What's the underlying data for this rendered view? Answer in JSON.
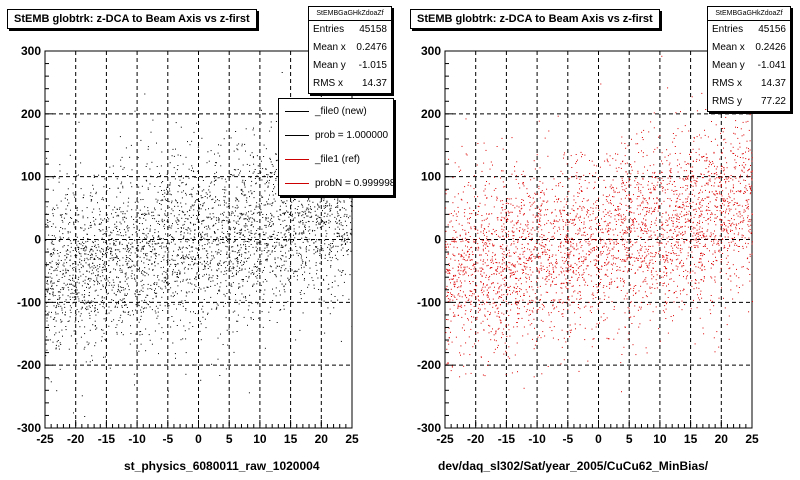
{
  "footer_text": "",
  "chart_data": [
    {
      "type": "scatter",
      "title": "StEMB globtrk: z-DCA to Beam Axis vs z-first",
      "xlabel": "st_physics_6080011_raw_1020004",
      "ylabel": "",
      "xlim": [
        -25,
        25
      ],
      "ylim": [
        -300,
        300
      ],
      "xticks": [
        "-25",
        "-20",
        "-15",
        "-10",
        "-5",
        "0",
        "5",
        "10",
        "15",
        "20",
        "25"
      ],
      "yticks": [
        "-300",
        "-200",
        "-100",
        "0",
        "100",
        "200",
        "300"
      ],
      "grid": true,
      "point_color": "#000000",
      "points_approx": 45158,
      "stats": {
        "name": "StEMBGaGHkZdoaZf",
        "rows": [
          {
            "label": "Entries",
            "value": "45158"
          },
          {
            "label": "Mean x",
            "value": "0.2476"
          },
          {
            "label": "Mean y",
            "value": "-1.015"
          },
          {
            "label": "RMS x",
            "value": "14.37"
          }
        ]
      },
      "legend": {
        "placement": "top-right",
        "entries": [
          {
            "label": "_file0 (new)",
            "color": "#000000"
          },
          {
            "label": "prob = 1.000000",
            "color": "#000000"
          },
          {
            "label": "_file1 (ref)",
            "color": "#cc0000"
          },
          {
            "label": "probN = 0.999998",
            "color": "#cc0000"
          }
        ]
      }
    },
    {
      "type": "scatter",
      "title": "StEMB globtrk: z-DCA to Beam Axis vs z-first",
      "xlabel": "dev/daq_sl302/Sat/year_2005/CuCu62_MinBias/",
      "ylabel": "",
      "xlim": [
        -25,
        25
      ],
      "ylim": [
        -300,
        300
      ],
      "xticks": [
        "-25",
        "-20",
        "-15",
        "-10",
        "-5",
        "0",
        "5",
        "10",
        "15",
        "20",
        "25"
      ],
      "yticks": [
        "-300",
        "-200",
        "-100",
        "0",
        "100",
        "200",
        "300"
      ],
      "grid": true,
      "point_color": "#dd0000",
      "points_approx": 45156,
      "stats": {
        "name": "StEMBGaGHkZdoaZf",
        "rows": [
          {
            "label": "Entries",
            "value": "45156"
          },
          {
            "label": "Mean x",
            "value": "0.2426"
          },
          {
            "label": "Mean y",
            "value": "-1.041"
          },
          {
            "label": "RMS x",
            "value": "14.37"
          },
          {
            "label": "RMS y",
            "value": "77.22"
          }
        ]
      }
    }
  ]
}
